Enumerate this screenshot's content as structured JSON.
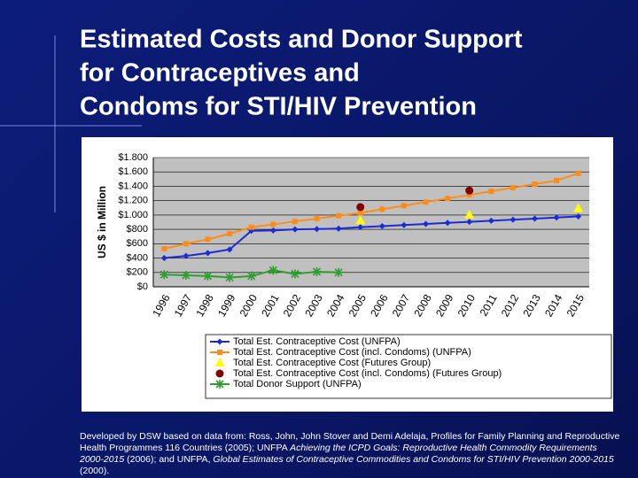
{
  "slide": {
    "title": [
      "Estimated Costs and Donor Support",
      "for Contraceptives and",
      "Condoms for STI/HIV Prevention"
    ],
    "footnote": [
      {
        "text": "Developed by DSW based on data from: Ross, John, John Stover and Demi Adelaja, Profiles for Family Planning and Reproductive Health Programmes 116 Countries (2005); UNFPA ",
        "italic": false
      },
      {
        "text": "Achieving the ICPD Goals: Reproductive Health Commodity Requirements 2000-2015",
        "italic": true
      },
      {
        "text": " (2006); and UNFPA, ",
        "italic": false
      },
      {
        "text": "Global Estimates of Contraceptive Commodities and Condoms for STI/HIV Prevention 2000-2015",
        "italic": true
      },
      {
        "text": " (2000).",
        "italic": false
      }
    ]
  },
  "chart_data": {
    "type": "line",
    "ylabel": "US $ in Million",
    "categories": [
      "1996",
      "1997",
      "1998",
      "1999",
      "2000",
      "2001",
      "2002",
      "2003",
      "2004",
      "2005",
      "2006",
      "2007",
      "2008",
      "2009",
      "2010",
      "2011",
      "2012",
      "2013",
      "2014",
      "2015"
    ],
    "ylim": [
      0,
      1800
    ],
    "yticks": [
      {
        "value": 0,
        "label": "$0"
      },
      {
        "value": 200,
        "label": "$200"
      },
      {
        "value": 400,
        "label": "$400"
      },
      {
        "value": 600,
        "label": "$600"
      },
      {
        "value": 800,
        "label": "$800"
      },
      {
        "value": 1000,
        "label": "$1.000"
      },
      {
        "value": 1200,
        "label": "$1.200"
      },
      {
        "value": 1400,
        "label": "$1.400"
      },
      {
        "value": 1600,
        "label": "$1.600"
      },
      {
        "value": 1800,
        "label": "$1.800"
      }
    ],
    "grid": true,
    "series": [
      {
        "name": "Total Est. Contraceptive Cost (UNFPA)",
        "color": "#1a2bd6",
        "marker": "diamond",
        "line": true,
        "values": [
          400,
          430,
          470,
          520,
          780,
          785,
          800,
          805,
          810,
          830,
          845,
          860,
          875,
          890,
          905,
          920,
          935,
          950,
          965,
          980
        ]
      },
      {
        "name": "Total Est. Contraceptive Cost (incl. Condoms) (UNFPA)",
        "color": "#ff8c1a",
        "marker": "square",
        "line": true,
        "values": [
          530,
          600,
          660,
          740,
          830,
          870,
          910,
          950,
          990,
          1030,
          1080,
          1130,
          1180,
          1230,
          1280,
          1330,
          1380,
          1430,
          1480,
          1580
        ]
      },
      {
        "name": "Total Est. Contraceptive Cost (Futures Group)",
        "color": "#ffff00",
        "marker": "triangle",
        "line": false,
        "values": [
          null,
          null,
          null,
          null,
          null,
          null,
          null,
          null,
          null,
          920,
          null,
          null,
          null,
          null,
          1000,
          null,
          null,
          null,
          null,
          1090
        ]
      },
      {
        "name": "Total Est. Contraceptive Cost (incl. Condoms) (Futures Group)",
        "color": "#800000",
        "marker": "circle",
        "line": false,
        "values": [
          null,
          null,
          null,
          null,
          null,
          null,
          null,
          null,
          null,
          1110,
          null,
          null,
          null,
          null,
          1340,
          null,
          null,
          null,
          null,
          null
        ]
      },
      {
        "name": "Total Donor Support (UNFPA)",
        "color": "#2e9e2e",
        "marker": "asterisk",
        "line": true,
        "values": [
          170,
          160,
          150,
          130,
          150,
          230,
          180,
          210,
          200,
          null,
          null,
          null,
          null,
          null,
          null,
          null,
          null,
          null,
          null,
          null
        ]
      }
    ]
  }
}
